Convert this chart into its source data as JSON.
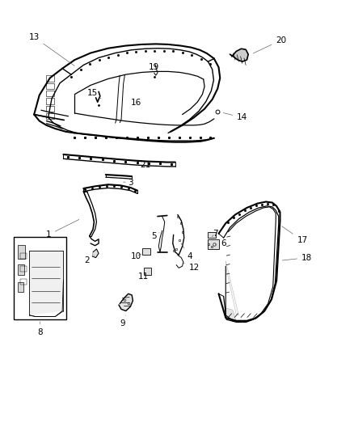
{
  "bg_color": "#ffffff",
  "fig_width": 4.38,
  "fig_height": 5.33,
  "lc": "#000000",
  "lw": 0.7,
  "fs": 7.5,
  "leaders": {
    "13": {
      "lxy": [
        0.095,
        0.915
      ],
      "axy": [
        0.215,
        0.845
      ]
    },
    "20": {
      "lxy": [
        0.795,
        0.908
      ],
      "axy": [
        0.71,
        0.875
      ]
    },
    "19": {
      "lxy": [
        0.435,
        0.845
      ],
      "axy": [
        0.43,
        0.838
      ]
    },
    "15": {
      "lxy": [
        0.26,
        0.785
      ],
      "axy": [
        0.285,
        0.772
      ]
    },
    "16": {
      "lxy": [
        0.385,
        0.762
      ],
      "axy": [
        0.39,
        0.762
      ]
    },
    "14": {
      "lxy": [
        0.685,
        0.728
      ],
      "axy": [
        0.625,
        0.74
      ]
    },
    "21": {
      "lxy": [
        0.41,
        0.618
      ],
      "axy": [
        0.375,
        0.625
      ]
    },
    "3": {
      "lxy": [
        0.368,
        0.577
      ],
      "axy": [
        0.348,
        0.578
      ]
    },
    "1": {
      "lxy": [
        0.135,
        0.455
      ],
      "axy": [
        0.228,
        0.493
      ]
    },
    "2": {
      "lxy": [
        0.245,
        0.395
      ],
      "axy": [
        0.265,
        0.408
      ]
    },
    "10": {
      "lxy": [
        0.385,
        0.405
      ],
      "axy": [
        0.405,
        0.413
      ]
    },
    "11": {
      "lxy": [
        0.405,
        0.358
      ],
      "axy": [
        0.415,
        0.368
      ]
    },
    "5": {
      "lxy": [
        0.435,
        0.452
      ],
      "axy": [
        0.45,
        0.46
      ]
    },
    "4": {
      "lxy": [
        0.535,
        0.405
      ],
      "axy": [
        0.508,
        0.44
      ]
    },
    "12": {
      "lxy": [
        0.548,
        0.378
      ],
      "axy": [
        0.518,
        0.39
      ]
    },
    "7": {
      "lxy": [
        0.608,
        0.458
      ],
      "axy": [
        0.595,
        0.447
      ]
    },
    "6": {
      "lxy": [
        0.632,
        0.435
      ],
      "axy": [
        0.602,
        0.432
      ]
    },
    "9": {
      "lxy": [
        0.345,
        0.248
      ],
      "axy": [
        0.355,
        0.268
      ]
    },
    "8": {
      "lxy": [
        0.112,
        0.228
      ],
      "axy": [
        0.112,
        0.258
      ]
    },
    "17": {
      "lxy": [
        0.855,
        0.442
      ],
      "axy": [
        0.792,
        0.478
      ]
    },
    "18": {
      "lxy": [
        0.868,
        0.402
      ],
      "axy": [
        0.792,
        0.395
      ]
    }
  }
}
